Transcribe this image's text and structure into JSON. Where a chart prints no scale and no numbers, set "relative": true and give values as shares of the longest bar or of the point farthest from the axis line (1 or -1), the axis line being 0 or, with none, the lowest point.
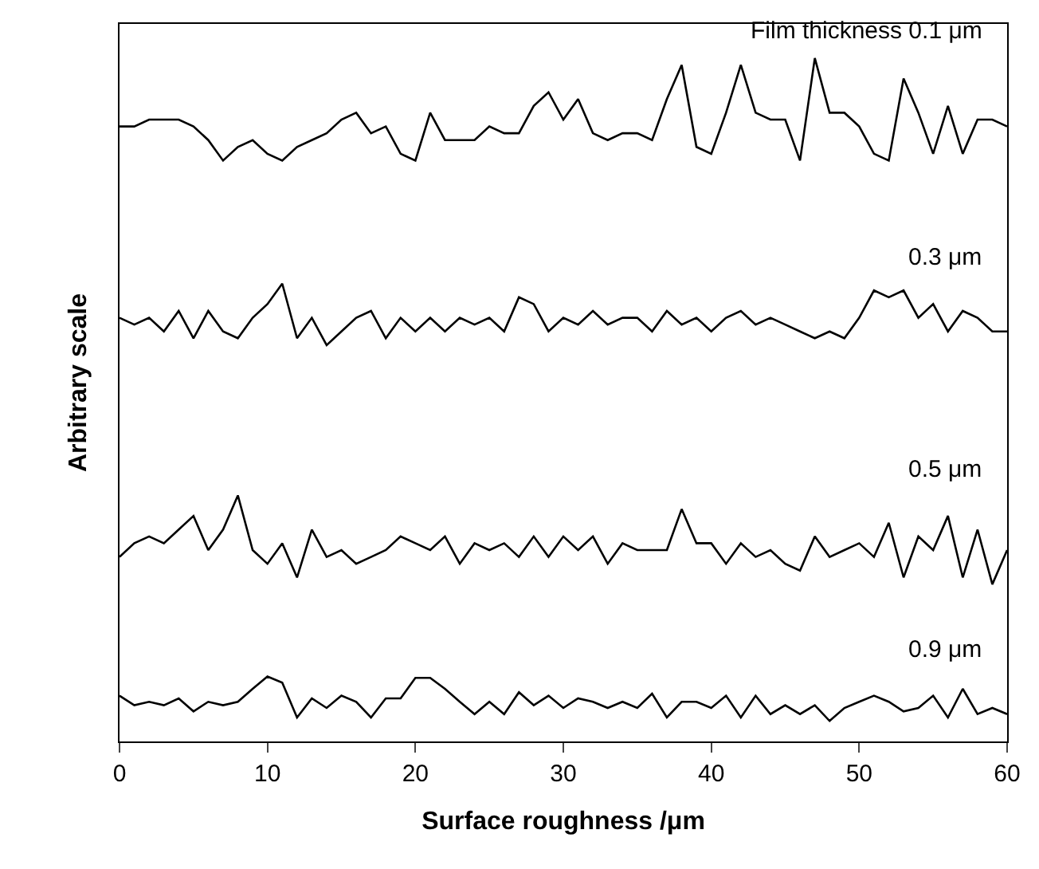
{
  "chart_data": {
    "type": "line",
    "relative": true,
    "xlabel": "Surface roughness /μm",
    "ylabel": "Arbitrary scale",
    "x": [
      0,
      1,
      2,
      3,
      4,
      5,
      6,
      7,
      8,
      9,
      10,
      11,
      12,
      13,
      14,
      15,
      16,
      17,
      18,
      19,
      20,
      21,
      22,
      23,
      24,
      25,
      26,
      27,
      28,
      29,
      30,
      31,
      32,
      33,
      34,
      35,
      36,
      37,
      38,
      39,
      40,
      41,
      42,
      43,
      44,
      45,
      46,
      47,
      48,
      49,
      50,
      51,
      52,
      53,
      54,
      55,
      56,
      57,
      58,
      59,
      60
    ],
    "xlim": [
      0,
      60
    ],
    "xticks": [
      0,
      10,
      20,
      30,
      40,
      50,
      60
    ],
    "legend": false,
    "marker": "none",
    "line_style": "solid",
    "series": [
      {
        "name": "Film thickness 0.1 μm",
        "color": "#000000",
        "values": [
          0.9,
          0.9,
          0.91,
          0.91,
          0.91,
          0.9,
          0.88,
          0.85,
          0.87,
          0.88,
          0.86,
          0.85,
          0.87,
          0.88,
          0.89,
          0.91,
          0.92,
          0.89,
          0.9,
          0.86,
          0.85,
          0.92,
          0.88,
          0.88,
          0.88,
          0.9,
          0.89,
          0.89,
          0.93,
          0.95,
          0.91,
          0.94,
          0.89,
          0.88,
          0.89,
          0.89,
          0.88,
          0.94,
          0.99,
          0.87,
          0.86,
          0.92,
          0.99,
          0.92,
          0.91,
          0.91,
          0.85,
          1.0,
          0.92,
          0.92,
          0.9,
          0.86,
          0.85,
          0.97,
          0.92,
          0.86,
          0.93,
          0.86,
          0.91,
          0.91,
          0.9
        ]
      },
      {
        "name": "0.3 μm",
        "color": "#000000",
        "values": [
          0.62,
          0.61,
          0.62,
          0.6,
          0.63,
          0.59,
          0.63,
          0.6,
          0.59,
          0.62,
          0.64,
          0.67,
          0.59,
          0.62,
          0.58,
          0.6,
          0.62,
          0.63,
          0.59,
          0.62,
          0.6,
          0.62,
          0.6,
          0.62,
          0.61,
          0.62,
          0.6,
          0.65,
          0.64,
          0.6,
          0.62,
          0.61,
          0.63,
          0.61,
          0.62,
          0.62,
          0.6,
          0.63,
          0.61,
          0.62,
          0.6,
          0.62,
          0.63,
          0.61,
          0.62,
          0.61,
          0.6,
          0.59,
          0.6,
          0.59,
          0.62,
          0.66,
          0.65,
          0.66,
          0.62,
          0.64,
          0.6,
          0.63,
          0.62,
          0.6,
          0.6
        ]
      },
      {
        "name": "0.5 μm",
        "color": "#000000",
        "values": [
          0.27,
          0.29,
          0.3,
          0.29,
          0.31,
          0.33,
          0.28,
          0.31,
          0.36,
          0.28,
          0.26,
          0.29,
          0.24,
          0.31,
          0.27,
          0.28,
          0.26,
          0.27,
          0.28,
          0.3,
          0.29,
          0.28,
          0.3,
          0.26,
          0.29,
          0.28,
          0.29,
          0.27,
          0.3,
          0.27,
          0.3,
          0.28,
          0.3,
          0.26,
          0.29,
          0.28,
          0.28,
          0.28,
          0.34,
          0.29,
          0.29,
          0.26,
          0.29,
          0.27,
          0.28,
          0.26,
          0.25,
          0.3,
          0.27,
          0.28,
          0.29,
          0.27,
          0.32,
          0.24,
          0.3,
          0.28,
          0.33,
          0.24,
          0.31,
          0.23,
          0.28
        ]
      },
      {
        "name": "0.9 μm",
        "color": "#000000",
        "values": [
          0.067,
          0.053,
          0.058,
          0.053,
          0.063,
          0.044,
          0.058,
          0.053,
          0.058,
          0.077,
          0.095,
          0.086,
          0.035,
          0.063,
          0.049,
          0.067,
          0.058,
          0.035,
          0.063,
          0.063,
          0.093,
          0.093,
          0.077,
          0.058,
          0.04,
          0.058,
          0.04,
          0.072,
          0.053,
          0.067,
          0.049,
          0.063,
          0.058,
          0.049,
          0.058,
          0.049,
          0.07,
          0.035,
          0.058,
          0.058,
          0.049,
          0.067,
          0.035,
          0.067,
          0.04,
          0.053,
          0.04,
          0.053,
          0.03,
          0.049,
          0.058,
          0.067,
          0.058,
          0.044,
          0.049,
          0.067,
          0.035,
          0.077,
          0.04,
          0.049,
          0.04
        ]
      }
    ]
  }
}
